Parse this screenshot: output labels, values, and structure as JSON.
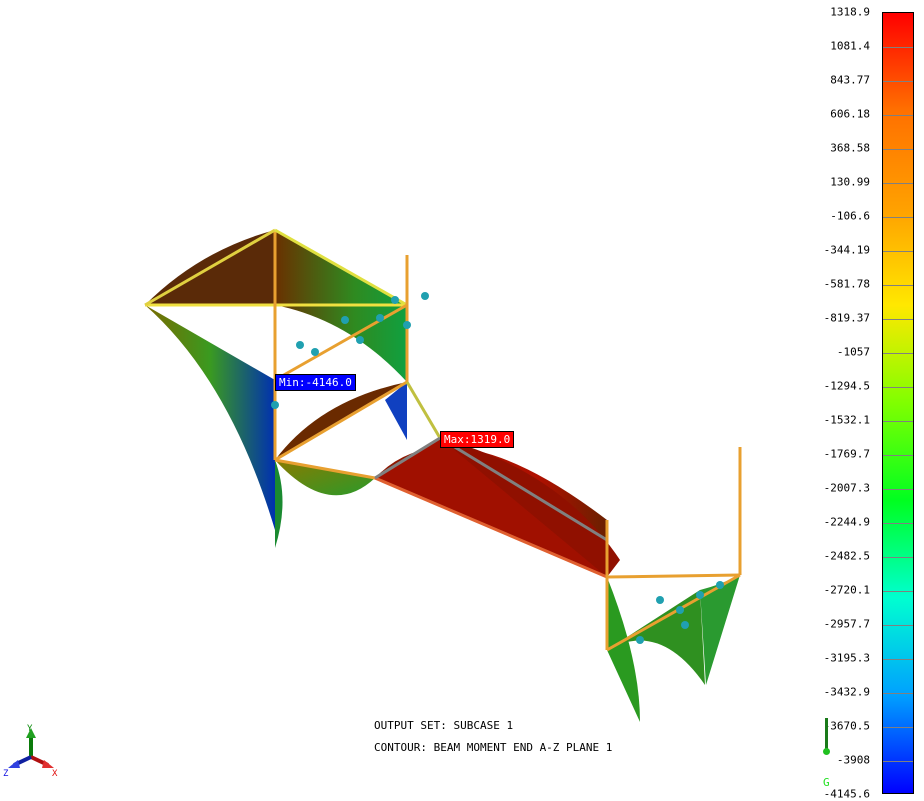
{
  "info": {
    "output_set": "OUTPUT SET: SUBCASE 1",
    "contour": "CONTOUR: BEAM MOMENT END A-Z PLANE 1"
  },
  "markers": {
    "min_label": "Min:",
    "min_value": "-4146.0",
    "max_label": "Max:",
    "max_value": "1319.0",
    "min_color": "#0000ff",
    "max_color": "#ff0000"
  },
  "legend": {
    "labels": [
      "1318.9",
      "1081.4",
      "843.77",
      "606.18",
      "368.58",
      "130.99",
      "-106.6",
      "-344.19",
      "-581.78",
      "-819.37",
      "-1057",
      "-1294.5",
      "-1532.1",
      "-1769.7",
      "-2007.3",
      "-2244.9",
      "-2482.5",
      "-2720.1",
      "-2957.7",
      "-3195.3",
      "-3432.9",
      "-3670.5",
      "-3908",
      "-4145.6"
    ],
    "colors": [
      "#ff0000",
      "#ff7000",
      "#ffa000",
      "#ffe800",
      "#80ff00",
      "#00ff20",
      "#00ffd0",
      "#00a0ff",
      "#0000ff"
    ]
  },
  "gravity": {
    "label": "G"
  },
  "triad": {
    "x": "X",
    "y": "Y",
    "z": "Z"
  }
}
